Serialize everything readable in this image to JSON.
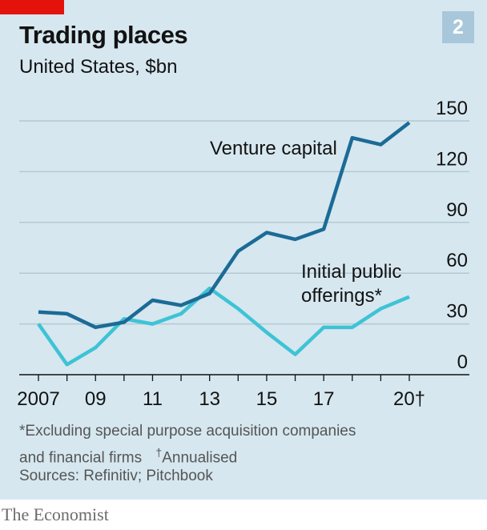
{
  "header": {
    "title": "Trading places",
    "subtitle": "United States, $bn",
    "chart_number": "2"
  },
  "notes": {
    "footnote_line1": "*Excluding special purpose acquisition companies",
    "footnote_line2_a": "and financial firms",
    "footnote_dagger": "†",
    "footnote_line2_b": "Annualised",
    "sources": "Sources: Refinitiv; Pitchbook"
  },
  "brand": "The Economist",
  "chart_data": {
    "type": "line",
    "x": [
      2007,
      2008,
      2009,
      2010,
      2011,
      2012,
      2013,
      2014,
      2015,
      2016,
      2017,
      2018,
      2019,
      2020
    ],
    "x_tick_labels": [
      {
        "x": 2007,
        "label": "2007"
      },
      {
        "x": 2009,
        "label": "09"
      },
      {
        "x": 2011,
        "label": "11"
      },
      {
        "x": 2013,
        "label": "13"
      },
      {
        "x": 2015,
        "label": "15"
      },
      {
        "x": 2017,
        "label": "17"
      },
      {
        "x": 2020,
        "label": "20†"
      }
    ],
    "y_ticks": [
      0,
      30,
      60,
      90,
      120,
      150
    ],
    "ylim": [
      0,
      150
    ],
    "xlim": [
      2007,
      2020
    ],
    "grid": true,
    "series": [
      {
        "name": "Venture capital",
        "color": "#1b6b96",
        "values": [
          37,
          36,
          28,
          31,
          44,
          41,
          48,
          73,
          84,
          80,
          86,
          140,
          136,
          149
        ]
      },
      {
        "name": "Initial public offerings*",
        "color": "#3ec3d5",
        "values": [
          30,
          6,
          16,
          33,
          30,
          36,
          51,
          39,
          25,
          12,
          28,
          28,
          39,
          46
        ]
      }
    ],
    "annotations": {
      "venture": "Venture capital",
      "ipo_line1": "Initial public",
      "ipo_line2": "offerings*"
    }
  }
}
